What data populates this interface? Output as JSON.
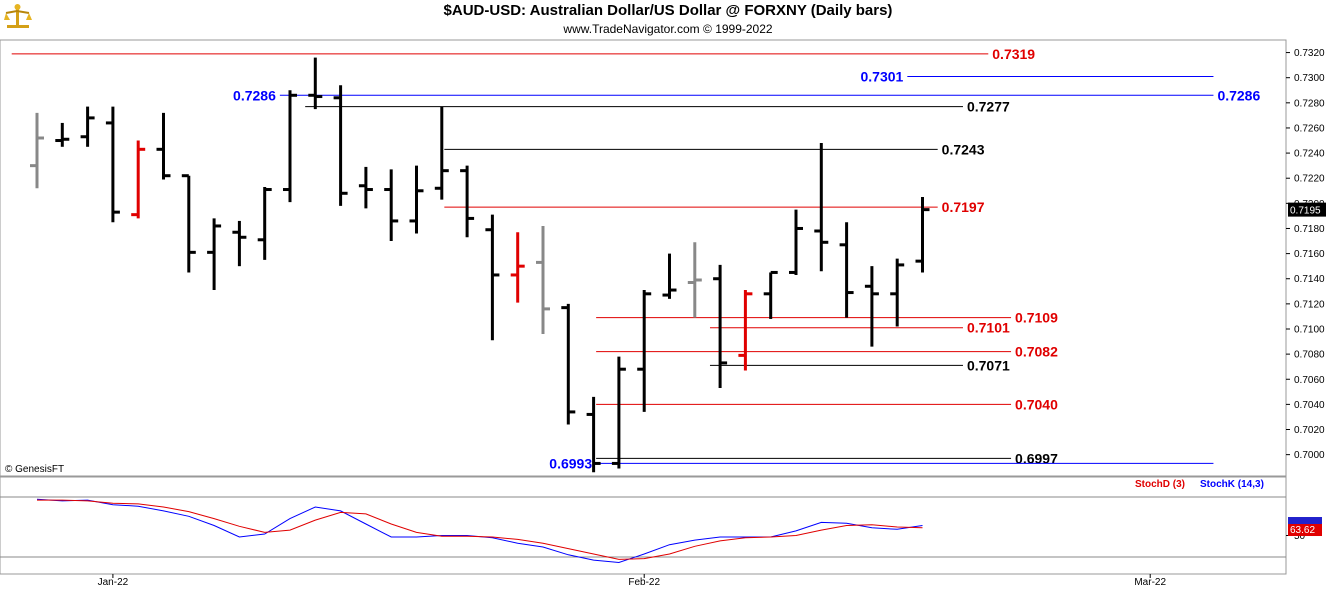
{
  "header": {
    "title": "$AUD-USD:  Australian Dollar/US Dollar @ FORXNY  (Daily bars)",
    "subtitle": "www.TradeNavigator.com © 1999-2022"
  },
  "watermark": "© GenesisFT",
  "colors": {
    "up": "#000000",
    "neutral": "#888888",
    "down": "#e00000",
    "blue": "#0000ff",
    "red": "#e00000",
    "frame": "#999999"
  },
  "chart_data": [
    {
      "type": "ohlc",
      "y_ticks": [
        "0.7000",
        "0.7020",
        "0.7040",
        "0.7060",
        "0.7080",
        "0.7100",
        "0.7120",
        "0.7140",
        "0.7160",
        "0.7180",
        "0.7200",
        "0.7220",
        "0.7240",
        "0.7260",
        "0.7280",
        "0.7300",
        "0.7320"
      ],
      "ylim": [
        0.6983,
        0.733
      ],
      "x_labels": [
        {
          "label": "Jan-22",
          "bar": 3
        },
        {
          "label": "Feb-22",
          "bar": 24
        },
        {
          "label": "Mar-22",
          "bar": 44
        }
      ],
      "last_price": "0.7195",
      "bars": [
        {
          "o": 0.723,
          "h": 0.7272,
          "l": 0.7212,
          "c": 0.7252,
          "color": "neutral"
        },
        {
          "o": 0.725,
          "h": 0.7264,
          "l": 0.7245,
          "c": 0.7251,
          "color": "up"
        },
        {
          "o": 0.7253,
          "h": 0.7277,
          "l": 0.7245,
          "c": 0.7268,
          "color": "up"
        },
        {
          "o": 0.7264,
          "h": 0.7277,
          "l": 0.7185,
          "c": 0.7193,
          "color": "up"
        },
        {
          "o": 0.7191,
          "h": 0.725,
          "l": 0.7188,
          "c": 0.7243,
          "color": "down"
        },
        {
          "o": 0.7243,
          "h": 0.7272,
          "l": 0.7219,
          "c": 0.7222,
          "color": "up"
        },
        {
          "o": 0.7222,
          "h": 0.7222,
          "l": 0.7145,
          "c": 0.7161,
          "color": "up"
        },
        {
          "o": 0.7161,
          "h": 0.7188,
          "l": 0.7131,
          "c": 0.7182,
          "color": "up"
        },
        {
          "o": 0.7177,
          "h": 0.7186,
          "l": 0.715,
          "c": 0.7173,
          "color": "up"
        },
        {
          "o": 0.7171,
          "h": 0.7213,
          "l": 0.7155,
          "c": 0.7211,
          "color": "up"
        },
        {
          "o": 0.7211,
          "h": 0.729,
          "l": 0.7201,
          "c": 0.7286,
          "color": "up"
        },
        {
          "o": 0.7286,
          "h": 0.7316,
          "l": 0.7275,
          "c": 0.7285,
          "color": "up"
        },
        {
          "o": 0.7284,
          "h": 0.7294,
          "l": 0.7198,
          "c": 0.7208,
          "color": "up"
        },
        {
          "o": 0.7214,
          "h": 0.7229,
          "l": 0.7196,
          "c": 0.7211,
          "color": "up"
        },
        {
          "o": 0.7211,
          "h": 0.7227,
          "l": 0.717,
          "c": 0.7186,
          "color": "up"
        },
        {
          "o": 0.7186,
          "h": 0.723,
          "l": 0.7176,
          "c": 0.721,
          "color": "up"
        },
        {
          "o": 0.7212,
          "h": 0.7277,
          "l": 0.7203,
          "c": 0.7226,
          "color": "up"
        },
        {
          "o": 0.7226,
          "h": 0.723,
          "l": 0.7173,
          "c": 0.7188,
          "color": "up"
        },
        {
          "o": 0.7179,
          "h": 0.7191,
          "l": 0.7091,
          "c": 0.7143,
          "color": "up"
        },
        {
          "o": 0.7143,
          "h": 0.7177,
          "l": 0.7121,
          "c": 0.715,
          "color": "down"
        },
        {
          "o": 0.7153,
          "h": 0.7182,
          "l": 0.7096,
          "c": 0.7116,
          "color": "neutral"
        },
        {
          "o": 0.7117,
          "h": 0.712,
          "l": 0.7024,
          "c": 0.7034,
          "color": "up"
        },
        {
          "o": 0.7032,
          "h": 0.7046,
          "l": 0.6986,
          "c": 0.6993,
          "color": "up"
        },
        {
          "o": 0.6993,
          "h": 0.7078,
          "l": 0.6989,
          "c": 0.7068,
          "color": "up"
        },
        {
          "o": 0.7068,
          "h": 0.7131,
          "l": 0.7034,
          "c": 0.7128,
          "color": "up"
        },
        {
          "o": 0.7127,
          "h": 0.716,
          "l": 0.7124,
          "c": 0.7131,
          "color": "up"
        },
        {
          "o": 0.7137,
          "h": 0.7169,
          "l": 0.7109,
          "c": 0.7139,
          "color": "neutral"
        },
        {
          "o": 0.714,
          "h": 0.7151,
          "l": 0.7053,
          "c": 0.7073,
          "color": "up"
        },
        {
          "o": 0.7079,
          "h": 0.7131,
          "l": 0.7067,
          "c": 0.7128,
          "color": "down"
        },
        {
          "o": 0.7128,
          "h": 0.7145,
          "l": 0.7108,
          "c": 0.7145,
          "color": "up"
        },
        {
          "o": 0.7145,
          "h": 0.7195,
          "l": 0.7143,
          "c": 0.718,
          "color": "up"
        },
        {
          "o": 0.7178,
          "h": 0.7248,
          "l": 0.7146,
          "c": 0.7169,
          "color": "up"
        },
        {
          "o": 0.7167,
          "h": 0.7185,
          "l": 0.7109,
          "c": 0.7129,
          "color": "up"
        },
        {
          "o": 0.7134,
          "h": 0.715,
          "l": 0.7086,
          "c": 0.7128,
          "color": "up"
        },
        {
          "o": 0.7128,
          "h": 0.7156,
          "l": 0.7102,
          "c": 0.7151,
          "color": "up"
        },
        {
          "o": 0.7154,
          "h": 0.7205,
          "l": 0.7145,
          "c": 0.7195,
          "color": "up"
        }
      ],
      "levels": [
        {
          "value": 0.7319,
          "label": "0.7319",
          "color": "red",
          "x_from_bar": -1,
          "x_to_bar": 37.6,
          "label_side": "right"
        },
        {
          "value": 0.7301,
          "label": "0.7301",
          "color": "blue",
          "x_from_bar": 34.4,
          "x_to_bar": 46.5,
          "label_side": "left"
        },
        {
          "value": 0.7286,
          "label": "0.7286",
          "color": "blue",
          "x_from_bar": 9.6,
          "x_to_bar": 46.5,
          "label_side": "both"
        },
        {
          "value": 0.7277,
          "label": "0.7277",
          "color": "black",
          "x_from_bar": 10.6,
          "x_to_bar": 36.6,
          "label_side": "right"
        },
        {
          "value": 0.7243,
          "label": "0.7243",
          "color": "black",
          "x_from_bar": 16.1,
          "x_to_bar": 35.6,
          "label_side": "right"
        },
        {
          "value": 0.7197,
          "label": "0.7197",
          "color": "red",
          "x_from_bar": 16.1,
          "x_to_bar": 35.6,
          "label_side": "right"
        },
        {
          "value": 0.7109,
          "label": "0.7109",
          "color": "red",
          "x_from_bar": 22.1,
          "x_to_bar": 38.5,
          "label_side": "right"
        },
        {
          "value": 0.7101,
          "label": "0.7101",
          "color": "red",
          "x_from_bar": 26.6,
          "x_to_bar": 36.6,
          "label_side": "right"
        },
        {
          "value": 0.7082,
          "label": "0.7082",
          "color": "red",
          "x_from_bar": 22.1,
          "x_to_bar": 38.5,
          "label_side": "right"
        },
        {
          "value": 0.7071,
          "label": "0.7071",
          "color": "black",
          "x_from_bar": 26.6,
          "x_to_bar": 36.6,
          "label_side": "right"
        },
        {
          "value": 0.704,
          "label": "0.7040",
          "color": "red",
          "x_from_bar": 22.1,
          "x_to_bar": 38.5,
          "label_side": "right"
        },
        {
          "value": 0.6997,
          "label": "0.6997",
          "color": "black",
          "x_from_bar": 22.1,
          "x_to_bar": 38.5,
          "label_side": "right"
        },
        {
          "value": 0.6993,
          "label": "0.6993",
          "color": "blue",
          "x_from_bar": 22.1,
          "x_to_bar": 46.5,
          "label_side": "left"
        }
      ]
    },
    {
      "type": "line",
      "legend": [
        {
          "label": "StochD (3)",
          "color": "red"
        },
        {
          "label": "StochK (14,3)",
          "color": "blue"
        }
      ],
      "ylim": [
        0,
        100
      ],
      "y_tick": "50",
      "last_value": "63.62",
      "series": [
        {
          "name": "StochK (14,3)",
          "color": "blue",
          "values": [
            97,
            95,
            96,
            90,
            88,
            82,
            75,
            63,
            48,
            52,
            72,
            87,
            82,
            65,
            48,
            48,
            50,
            50,
            47,
            40,
            35,
            25,
            18,
            15,
            26,
            38,
            44,
            48,
            48,
            48,
            56,
            67,
            66,
            60,
            58,
            63
          ]
        },
        {
          "name": "StochD (3)",
          "color": "red",
          "values": [
            96,
            96,
            95,
            92,
            91,
            87,
            81,
            72,
            62,
            54,
            57,
            70,
            80,
            78,
            65,
            54,
            49,
            49,
            48,
            45,
            40,
            33,
            26,
            19,
            20,
            26,
            36,
            43,
            47,
            48,
            50,
            57,
            63,
            64,
            61,
            60
          ]
        }
      ]
    }
  ]
}
